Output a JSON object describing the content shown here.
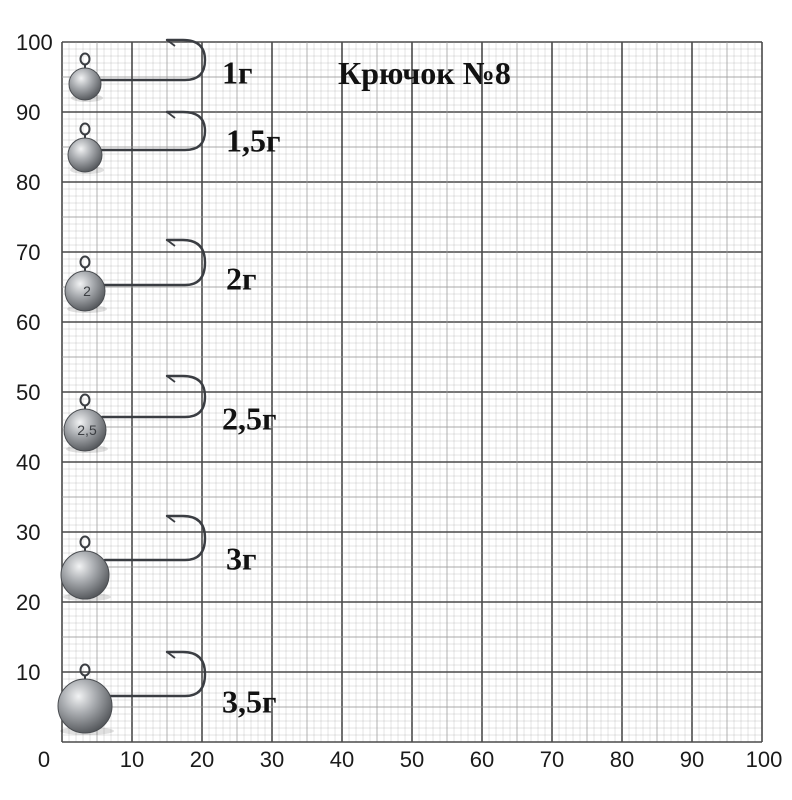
{
  "title": "Крючок №8",
  "axes": {
    "y_ticks": [
      "100",
      "90",
      "80",
      "70",
      "60",
      "50",
      "40",
      "30",
      "20",
      "10"
    ],
    "x_ticks": [
      "0",
      "10",
      "20",
      "30",
      "40",
      "50",
      "60",
      "70",
      "80",
      "90",
      "100"
    ]
  },
  "jig_heads": [
    {
      "label": "1г",
      "head_mark": ""
    },
    {
      "label": "1,5г",
      "head_mark": ""
    },
    {
      "label": "2г",
      "head_mark": "2"
    },
    {
      "label": "2,5г",
      "head_mark": "2,5"
    },
    {
      "label": "3г",
      "head_mark": ""
    },
    {
      "label": "3,5г",
      "head_mark": ""
    }
  ],
  "colors": {
    "paper": "#ffffff",
    "fine_grid": "#9a9a9a",
    "major_grid": "#4a4a4a",
    "lead_head": "#8f9296",
    "hook_wire": "#3a3d42"
  }
}
